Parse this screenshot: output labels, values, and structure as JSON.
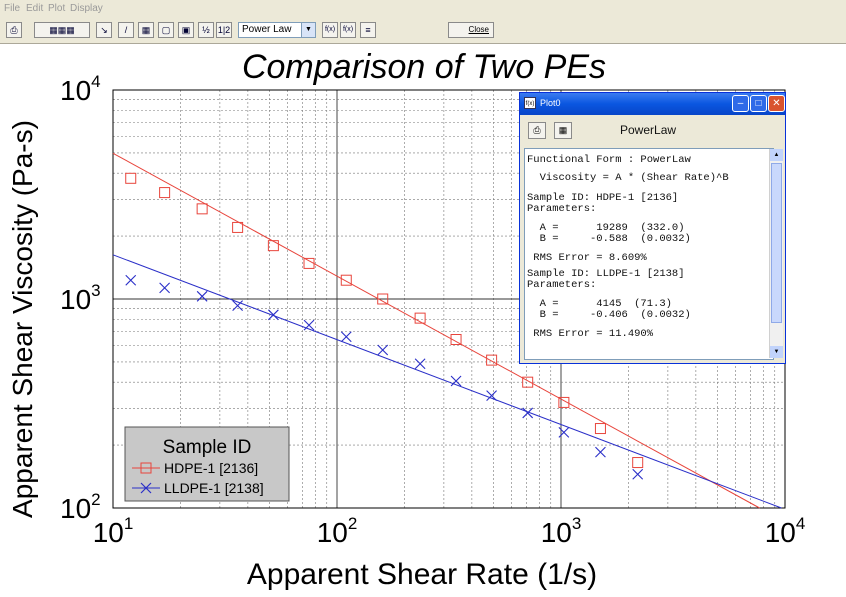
{
  "menu": [
    "File",
    "Edit",
    "Plot",
    "Display"
  ],
  "toolbar": {
    "model_select": "Power Law",
    "close_label": "Close",
    "half_label": "½",
    "one_two_label": "1|2",
    "fx_label": "f(x)",
    "fx2_label": "f(x)"
  },
  "popup": {
    "title": "Plot0",
    "name": "PowerLaw",
    "lines": [
      "Functional Form : PowerLaw",
      "  Viscosity = A * (Shear Rate)^B",
      "Sample ID: HDPE-1 [2136]",
      "Parameters:",
      "  A =      19289  (332.0)",
      "  B =     -0.588  (0.0032)",
      " RMS Error = 8.609%",
      "Sample ID: LLDPE-1 [2138]",
      "Parameters:",
      "  A =      4145  (71.3)",
      "  B =     -0.406  (0.0032)",
      " RMS Error = 11.490%"
    ]
  },
  "chart_data": {
    "type": "scatter",
    "title": "Comparison of Two PEs",
    "xlabel": "Apparent Shear Rate (1/s)",
    "ylabel": "Apparent Shear Viscosity (Pa-s)",
    "xscale": "log",
    "yscale": "log",
    "xlim": [
      10,
      10000
    ],
    "ylim": [
      100,
      10000
    ],
    "x_ticks": [
      {
        "base": "10",
        "exp": "1"
      },
      {
        "base": "10",
        "exp": "2"
      },
      {
        "base": "10",
        "exp": "3"
      },
      {
        "base": "10",
        "exp": "4"
      }
    ],
    "y_ticks": [
      {
        "base": "10",
        "exp": "2"
      },
      {
        "base": "10",
        "exp": "3"
      },
      {
        "base": "10",
        "exp": "4"
      }
    ],
    "grid": true,
    "legend": {
      "title": "Sample ID",
      "placement": "bottom-left"
    },
    "series": [
      {
        "name": "HDPE-1 [2136]",
        "color": "#e8453c",
        "marker": "square",
        "x": [
          12,
          17,
          25,
          36,
          52,
          75,
          110,
          160,
          235,
          340,
          490,
          710,
          1030,
          1500,
          2200
        ],
        "y": [
          3780,
          3230,
          2700,
          2200,
          1800,
          1480,
          1230,
          1000,
          810,
          640,
          510,
          400,
          320,
          240,
          165
        ],
        "fit": {
          "A": 19289,
          "B": -0.588
        }
      },
      {
        "name": "LLDPE-1 [2138]",
        "color": "#2a2fc8",
        "marker": "x",
        "x": [
          12,
          17,
          25,
          36,
          52,
          75,
          110,
          160,
          235,
          340,
          490,
          710,
          1030,
          1500,
          2200
        ],
        "y": [
          1230,
          1130,
          1030,
          930,
          840,
          750,
          660,
          570,
          490,
          405,
          345,
          285,
          230,
          185,
          145
        ],
        "fit": {
          "A": 4145,
          "B": -0.406
        }
      }
    ]
  }
}
